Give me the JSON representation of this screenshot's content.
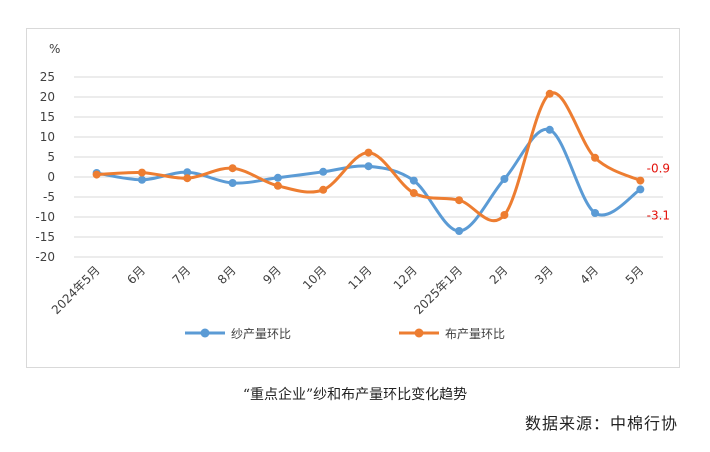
{
  "caption": "“重点企业”纱和布产量环比变化趋势",
  "source": "数据来源：中棉行协",
  "chart_data": {
    "type": "line",
    "unit_label": "%",
    "categories": [
      "2024年5月",
      "6月",
      "7月",
      "8月",
      "9月",
      "10月",
      "11月",
      "12月",
      "2025年1月",
      "2月",
      "3月",
      "4月",
      "5月"
    ],
    "ylim": [
      -20,
      25
    ],
    "yticks": [
      25,
      20,
      15,
      10,
      5,
      0,
      -5,
      -10,
      -15,
      -20
    ],
    "grid": true,
    "legend_position": "bottom",
    "series": [
      {
        "name": "纱产量环比",
        "color": "#5b9bd5",
        "values": [
          1.0,
          -0.7,
          1.2,
          -1.5,
          -0.2,
          1.3,
          2.7,
          -0.9,
          -13.5,
          -0.5,
          11.8,
          -9.0,
          -3.1
        ]
      },
      {
        "name": "布产量环比",
        "color": "#ed7d31",
        "values": [
          0.6,
          1.1,
          -0.3,
          2.2,
          -2.2,
          -3.2,
          6.1,
          -4.0,
          -5.8,
          -9.5,
          20.8,
          4.8,
          -0.9
        ]
      }
    ],
    "data_labels": [
      {
        "series": 1,
        "index": 12,
        "text": "-0.9"
      },
      {
        "series": 0,
        "index": 12,
        "text": "-3.1"
      }
    ]
  }
}
